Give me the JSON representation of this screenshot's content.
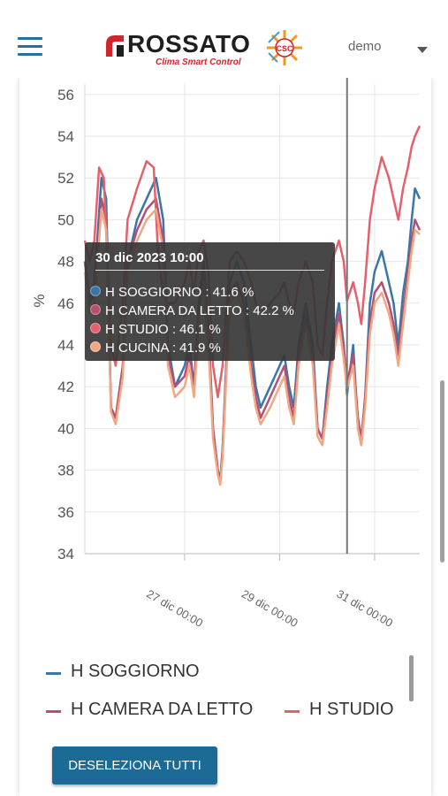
{
  "header": {
    "logo_text": "ROSSATO",
    "logo_subtitle": "Clima Smart Control",
    "user_name": "demo"
  },
  "chart_data": {
    "type": "line",
    "ylabel": "%",
    "ylim": [
      34,
      56.5
    ],
    "y_ticks": [
      "56",
      "54",
      "52",
      "50",
      "48",
      "46",
      "44",
      "42",
      "40",
      "38",
      "36",
      "34"
    ],
    "x_ticks": [
      "27 dic 00:00",
      "29 dic 00:00",
      "31 dic 00:00"
    ],
    "x_range_days": [
      24.9,
      31.95
    ],
    "cursor_day": 30.42,
    "series": [
      {
        "name": "H SOGGIORNO",
        "color": "#3a76a6",
        "points": [
          [
            24.9,
            48
          ],
          [
            25.0,
            46
          ],
          [
            25.1,
            47
          ],
          [
            25.25,
            52
          ],
          [
            25.35,
            51
          ],
          [
            25.45,
            41
          ],
          [
            25.55,
            40.5
          ],
          [
            25.7,
            43
          ],
          [
            25.8,
            48
          ],
          [
            26.0,
            50
          ],
          [
            26.2,
            51
          ],
          [
            26.4,
            52
          ],
          [
            26.55,
            50
          ],
          [
            26.65,
            44
          ],
          [
            26.8,
            42
          ],
          [
            27.0,
            43
          ],
          [
            27.1,
            44
          ],
          [
            27.2,
            42
          ],
          [
            27.3,
            46
          ],
          [
            27.4,
            48
          ],
          [
            27.5,
            45
          ],
          [
            27.6,
            40
          ],
          [
            27.7,
            38
          ],
          [
            27.75,
            37.5
          ],
          [
            27.8,
            39
          ],
          [
            27.95,
            47
          ],
          [
            28.1,
            48
          ],
          [
            28.25,
            47
          ],
          [
            28.4,
            44
          ],
          [
            28.5,
            42
          ],
          [
            28.6,
            41
          ],
          [
            28.8,
            42
          ],
          [
            29.0,
            43
          ],
          [
            29.1,
            43.5
          ],
          [
            29.2,
            42
          ],
          [
            29.3,
            41
          ],
          [
            29.4,
            44
          ],
          [
            29.55,
            46
          ],
          [
            29.7,
            44
          ],
          [
            29.8,
            40
          ],
          [
            29.9,
            39.5
          ],
          [
            30.0,
            42
          ],
          [
            30.1,
            44
          ],
          [
            30.25,
            46
          ],
          [
            30.35,
            44
          ],
          [
            30.42,
            41.6
          ],
          [
            30.55,
            44
          ],
          [
            30.65,
            40
          ],
          [
            30.72,
            39.2
          ],
          [
            30.8,
            41.5
          ],
          [
            30.9,
            46
          ],
          [
            31.0,
            47.5
          ],
          [
            31.15,
            48.5
          ],
          [
            31.3,
            47
          ],
          [
            31.4,
            46
          ],
          [
            31.5,
            44
          ],
          [
            31.6,
            46.5
          ],
          [
            31.7,
            48
          ],
          [
            31.78,
            50
          ],
          [
            31.85,
            51.5
          ],
          [
            31.95,
            51
          ]
        ]
      },
      {
        "name": "H CAMERA DA LETTO",
        "color": "#b55070",
        "points": [
          [
            24.9,
            48
          ],
          [
            25.0,
            46
          ],
          [
            25.1,
            46.5
          ],
          [
            25.25,
            51
          ],
          [
            25.35,
            50
          ],
          [
            25.45,
            41
          ],
          [
            25.55,
            40.5
          ],
          [
            25.7,
            43
          ],
          [
            25.8,
            48
          ],
          [
            26.0,
            49.5
          ],
          [
            26.2,
            50.5
          ],
          [
            26.4,
            51
          ],
          [
            26.55,
            49
          ],
          [
            26.65,
            43.5
          ],
          [
            26.8,
            42
          ],
          [
            27.0,
            42.5
          ],
          [
            27.1,
            43.5
          ],
          [
            27.2,
            42
          ],
          [
            27.3,
            45.5
          ],
          [
            27.4,
            47.5
          ],
          [
            27.5,
            44.5
          ],
          [
            27.6,
            40
          ],
          [
            27.7,
            38
          ],
          [
            27.75,
            37.4
          ],
          [
            27.8,
            39
          ],
          [
            27.95,
            46.5
          ],
          [
            28.1,
            47
          ],
          [
            28.25,
            46
          ],
          [
            28.4,
            43
          ],
          [
            28.5,
            41.5
          ],
          [
            28.6,
            40.5
          ],
          [
            28.8,
            41.5
          ],
          [
            29.0,
            42.5
          ],
          [
            29.1,
            43
          ],
          [
            29.2,
            41.5
          ],
          [
            29.3,
            40.5
          ],
          [
            29.4,
            43.5
          ],
          [
            29.55,
            45.5
          ],
          [
            29.7,
            43.5
          ],
          [
            29.8,
            40
          ],
          [
            29.9,
            39.5
          ],
          [
            30.0,
            41.5
          ],
          [
            30.1,
            43.5
          ],
          [
            30.25,
            45.5
          ],
          [
            30.35,
            43.8
          ],
          [
            30.42,
            42.2
          ],
          [
            30.55,
            43.5
          ],
          [
            30.65,
            40.5
          ],
          [
            30.72,
            39.5
          ],
          [
            30.8,
            41.5
          ],
          [
            30.9,
            45
          ],
          [
            31.0,
            46.5
          ],
          [
            31.15,
            47
          ],
          [
            31.3,
            46
          ],
          [
            31.4,
            45
          ],
          [
            31.5,
            43.5
          ],
          [
            31.6,
            45.5
          ],
          [
            31.7,
            47.5
          ],
          [
            31.78,
            49
          ],
          [
            31.85,
            50
          ],
          [
            31.95,
            49.5
          ]
        ]
      },
      {
        "name": "H STUDIO",
        "color": "#e4606c",
        "points": [
          [
            24.9,
            49
          ],
          [
            25.0,
            48
          ],
          [
            25.1,
            49
          ],
          [
            25.2,
            52.5
          ],
          [
            25.3,
            52
          ],
          [
            25.45,
            44
          ],
          [
            25.55,
            43
          ],
          [
            25.7,
            46
          ],
          [
            25.8,
            50
          ],
          [
            26.0,
            51.5
          ],
          [
            26.2,
            52.8
          ],
          [
            26.35,
            52.5
          ],
          [
            26.45,
            48
          ],
          [
            26.6,
            46
          ],
          [
            26.8,
            46
          ],
          [
            27.0,
            47
          ],
          [
            27.1,
            48
          ],
          [
            27.2,
            46.5
          ],
          [
            27.3,
            48.5
          ],
          [
            27.4,
            49
          ],
          [
            27.5,
            47.5
          ],
          [
            27.6,
            43
          ],
          [
            27.7,
            41.5
          ],
          [
            27.8,
            43
          ],
          [
            27.95,
            48
          ],
          [
            28.1,
            48.5
          ],
          [
            28.25,
            48
          ],
          [
            28.4,
            47
          ],
          [
            28.5,
            46
          ],
          [
            28.6,
            45.5
          ],
          [
            28.8,
            46
          ],
          [
            29.0,
            46.5
          ],
          [
            29.1,
            47
          ],
          [
            29.2,
            46
          ],
          [
            29.3,
            45.5
          ],
          [
            29.4,
            47
          ],
          [
            29.55,
            48
          ],
          [
            29.7,
            47
          ],
          [
            29.8,
            44
          ],
          [
            29.9,
            43.5
          ],
          [
            30.0,
            46
          ],
          [
            30.1,
            48
          ],
          [
            30.25,
            49
          ],
          [
            30.35,
            48
          ],
          [
            30.42,
            46.1
          ],
          [
            30.55,
            47
          ],
          [
            30.65,
            46
          ],
          [
            30.72,
            45
          ],
          [
            30.8,
            47
          ],
          [
            30.9,
            50
          ],
          [
            31.0,
            51.5
          ],
          [
            31.15,
            53
          ],
          [
            31.3,
            52
          ],
          [
            31.4,
            51
          ],
          [
            31.5,
            50
          ],
          [
            31.6,
            51.5
          ],
          [
            31.7,
            52.5
          ],
          [
            31.78,
            53.5
          ],
          [
            31.85,
            54
          ],
          [
            31.95,
            54.5
          ]
        ]
      },
      {
        "name": "H CUCINA",
        "color": "#f0a884",
        "points": [
          [
            24.9,
            47.5
          ],
          [
            25.0,
            45.5
          ],
          [
            25.1,
            46
          ],
          [
            25.25,
            50.5
          ],
          [
            25.35,
            49.5
          ],
          [
            25.45,
            40.8
          ],
          [
            25.55,
            40.2
          ],
          [
            25.7,
            42.5
          ],
          [
            25.8,
            47.5
          ],
          [
            26.0,
            49
          ],
          [
            26.2,
            50
          ],
          [
            26.4,
            50.5
          ],
          [
            26.55,
            48.5
          ],
          [
            26.65,
            43
          ],
          [
            26.8,
            41.5
          ],
          [
            27.0,
            42
          ],
          [
            27.1,
            43
          ],
          [
            27.2,
            41.5
          ],
          [
            27.3,
            45
          ],
          [
            27.4,
            47
          ],
          [
            27.5,
            44
          ],
          [
            27.6,
            39.5
          ],
          [
            27.7,
            37.8
          ],
          [
            27.75,
            37.3
          ],
          [
            27.8,
            38.6
          ],
          [
            27.95,
            46
          ],
          [
            28.1,
            46.5
          ],
          [
            28.25,
            45.5
          ],
          [
            28.4,
            42.5
          ],
          [
            28.5,
            41
          ],
          [
            28.6,
            40.2
          ],
          [
            28.8,
            41
          ],
          [
            29.0,
            42
          ],
          [
            29.1,
            42.5
          ],
          [
            29.2,
            41
          ],
          [
            29.3,
            40.2
          ],
          [
            29.4,
            43
          ],
          [
            29.55,
            45
          ],
          [
            29.7,
            43
          ],
          [
            29.8,
            39.6
          ],
          [
            29.9,
            39.2
          ],
          [
            30.0,
            41
          ],
          [
            30.1,
            43
          ],
          [
            30.25,
            45
          ],
          [
            30.35,
            43.3
          ],
          [
            30.42,
            41.9
          ],
          [
            30.55,
            43
          ],
          [
            30.65,
            40
          ],
          [
            30.72,
            39.2
          ],
          [
            30.8,
            41
          ],
          [
            30.9,
            44.5
          ],
          [
            31.0,
            46
          ],
          [
            31.15,
            46.5
          ],
          [
            31.3,
            45.5
          ],
          [
            31.4,
            44.5
          ],
          [
            31.5,
            43
          ],
          [
            31.6,
            45
          ],
          [
            31.7,
            47
          ],
          [
            31.78,
            48.5
          ],
          [
            31.85,
            49.5
          ],
          [
            31.95,
            49.3
          ]
        ]
      }
    ]
  },
  "tooltip": {
    "title": "30 dic 2023 10:00",
    "rows": [
      {
        "label": "H SOGGIORNO : 41.6 %",
        "color": "#3a76a6"
      },
      {
        "label": "H CAMERA DA LETTO : 42.2 %",
        "color": "#b55070"
      },
      {
        "label": "H STUDIO : 46.1 %",
        "color": "#e4606c"
      },
      {
        "label": "H CUCINA : 41.9 %",
        "color": "#f0a884"
      }
    ]
  },
  "legend": {
    "items": [
      {
        "label": "H SOGGIORNO",
        "color": "#3a76a6"
      },
      {
        "label": "H CAMERA DA LETTO",
        "color": "#b55070"
      },
      {
        "label": "H STUDIO",
        "color": "#e4606c"
      }
    ]
  },
  "actions": {
    "deselect_all_label": "DESELEZIONA TUTTI"
  }
}
